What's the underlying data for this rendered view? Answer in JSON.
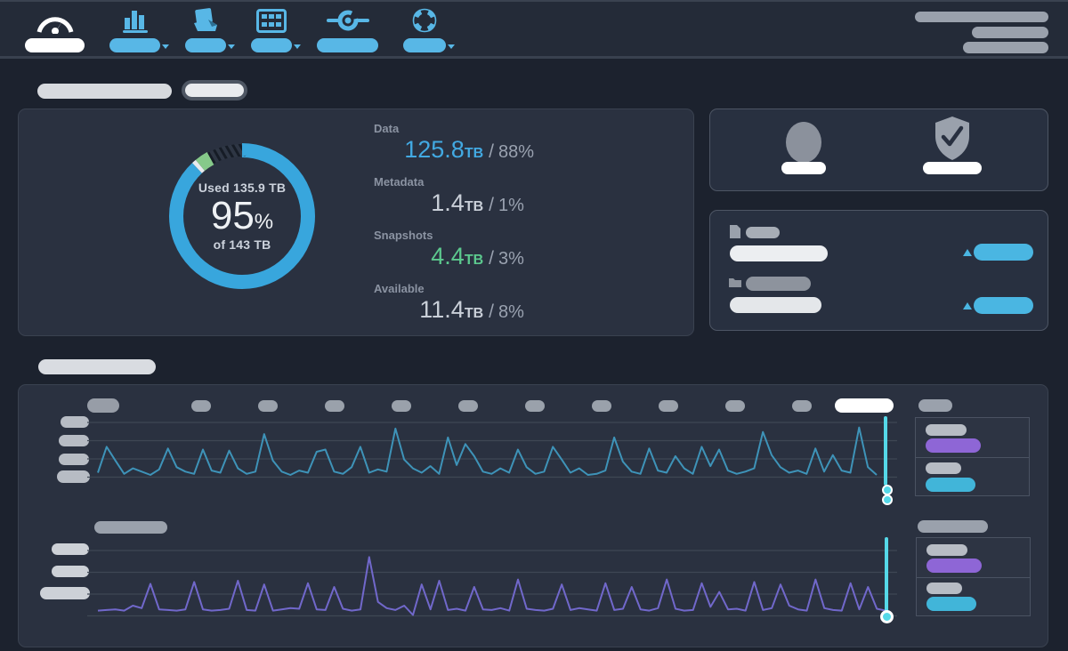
{
  "app": {
    "description": "Dark storage-cluster dashboard with redacted (pill) labels",
    "colors": {
      "page_bg": "#1c222e",
      "navbar_bg": "#242b38",
      "panel_bg": "#2a3140",
      "accent_blue": "#58b7e6",
      "donut_blue": "#38a6dd",
      "donut_green": "#86c98a",
      "donut_metadata": "#e8eaee",
      "line_teal": "#3e93b8",
      "line_purple": "#7168cb",
      "scrubber_cyan": "#55d8e8",
      "legend_purple": "#8e66d6",
      "legend_cyan": "#41b5d9",
      "gridline": "#3f4754"
    }
  },
  "nav": {
    "items": [
      {
        "name": "dashboard",
        "icon": "gauge-icon",
        "active": true,
        "caret": false
      },
      {
        "name": "analytics",
        "icon": "bar-chart-icon",
        "active": false,
        "caret": true
      },
      {
        "name": "sharing",
        "icon": "files-icon",
        "active": false,
        "caret": true
      },
      {
        "name": "cluster",
        "icon": "grid-icon",
        "active": false,
        "caret": true
      },
      {
        "name": "api-tools",
        "icon": "connector-icon",
        "active": false,
        "caret": false
      },
      {
        "name": "support",
        "icon": "life-ring-icon",
        "active": false,
        "caret": true
      }
    ],
    "right_pills": 3
  },
  "storage": {
    "used_label": "Used 135.9 TB",
    "used_percent": "95",
    "percent_symbol": "%",
    "total_label": "of 143 TB",
    "separator": "/",
    "stats": [
      {
        "label": "Data",
        "value": "125.8",
        "unit": "TB",
        "share": "88%",
        "color": "#42a9e2"
      },
      {
        "label": "Metadata",
        "value": "1.4",
        "unit": "TB",
        "share": "1%",
        "color": "#c9cfd8"
      },
      {
        "label": "Snapshots",
        "value": "4.4",
        "unit": "TB",
        "share": "3%",
        "color": "#5cc98e"
      },
      {
        "label": "Available",
        "value": "11.4",
        "unit": "TB",
        "share": "8%",
        "color": "#c9cfd8"
      }
    ]
  },
  "chart_data": [
    {
      "type": "pie",
      "subtype": "donut",
      "title": "Storage usage donut (center: Used 135.9 TB, 95%, of 143 TB)",
      "segments": [
        {
          "label": "Data",
          "pct": 88,
          "color": "#38a6dd"
        },
        {
          "label": "Metadata",
          "pct": 1,
          "color": "#e8eaee"
        },
        {
          "label": "Snapshots",
          "pct": 3,
          "color": "#86c98a"
        },
        {
          "label": "Available",
          "pct": 8,
          "color": "hatch"
        }
      ],
      "start_angle_deg": -90,
      "direction": "clockwise"
    },
    {
      "type": "line",
      "name": "activity-top",
      "color": "#3e93b8",
      "ylabels": "4 redacted pill labels, 4 gridlines",
      "xlabels": "11 redacted pill ticks along top, last tick highlighted white",
      "ylim": [
        0,
        100
      ],
      "values": [
        8,
        55,
        30,
        6,
        16,
        10,
        4,
        14,
        52,
        18,
        10,
        6,
        50,
        12,
        8,
        48,
        16,
        6,
        10,
        78,
        30,
        10,
        4,
        12,
        8,
        46,
        50,
        10,
        6,
        18,
        55,
        8,
        14,
        10,
        88,
        32,
        16,
        8,
        20,
        6,
        72,
        22,
        60,
        38,
        10,
        6,
        16,
        8,
        50,
        18,
        6,
        10,
        55,
        32,
        8,
        16,
        4,
        6,
        12,
        72,
        28,
        10,
        6,
        52,
        12,
        8,
        38,
        16,
        6,
        55,
        20,
        50,
        12,
        6,
        10,
        16,
        82,
        40,
        18,
        8,
        12,
        6,
        52,
        10,
        40,
        12,
        8,
        90,
        18,
        4
      ]
    },
    {
      "type": "line",
      "name": "activity-bottom",
      "color": "#7168cb",
      "ylabels": "3 redacted pill labels, 4 gridlines",
      "xlabels": "1 redacted pill title at top-left",
      "ylim": [
        -10,
        100
      ],
      "values": [
        2,
        3,
        4,
        2,
        10,
        6,
        45,
        4,
        3,
        2,
        4,
        48,
        4,
        2,
        3,
        5,
        50,
        3,
        2,
        44,
        2,
        4,
        6,
        5,
        46,
        4,
        3,
        40,
        5,
        2,
        4,
        88,
        16,
        6,
        3,
        10,
        -5,
        44,
        4,
        50,
        3,
        5,
        2,
        40,
        4,
        3,
        6,
        2,
        52,
        5,
        3,
        2,
        5,
        44,
        3,
        6,
        4,
        2,
        46,
        3,
        5,
        40,
        4,
        2,
        6,
        52,
        5,
        2,
        3,
        46,
        8,
        32,
        4,
        5,
        2,
        48,
        3,
        6,
        44,
        10,
        4,
        2,
        52,
        6,
        3,
        2,
        46,
        4,
        40,
        5,
        2
      ]
    }
  ]
}
